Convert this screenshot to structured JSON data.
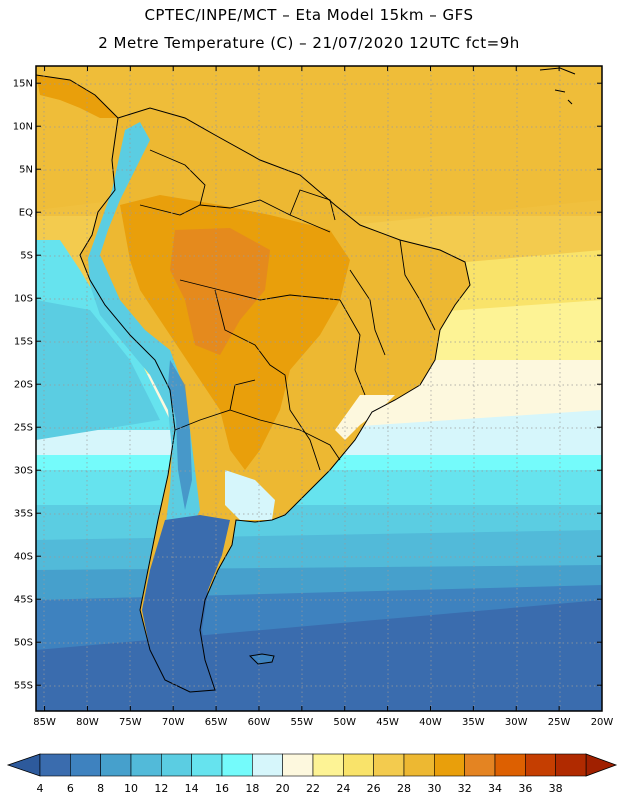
{
  "title": {
    "line1": "CPTEC/INPE/MCT –  Eta Model 15km – GFS",
    "line2": "2 Metre Temperature (C) – 21/07/2020 12UTC fct=9h"
  },
  "map": {
    "lon_range": [
      -86,
      -20
    ],
    "lat_range": [
      -58,
      17
    ],
    "lat_labels": [
      "15N",
      "10N",
      "5N",
      "EQ",
      "5S",
      "10S",
      "15S",
      "20S",
      "25S",
      "30S",
      "35S",
      "40S",
      "45S",
      "50S",
      "55S"
    ],
    "lat_values": [
      15,
      10,
      5,
      0,
      -5,
      -10,
      -15,
      -20,
      -25,
      -30,
      -35,
      -40,
      -45,
      -50,
      -55
    ],
    "lon_labels": [
      "85W",
      "80W",
      "75W",
      "70W",
      "65W",
      "60W",
      "55W",
      "50W",
      "45W",
      "40W",
      "35W",
      "30W",
      "25W",
      "20W"
    ],
    "lon_values": [
      -85,
      -80,
      -75,
      -70,
      -65,
      -60,
      -55,
      -50,
      -45,
      -40,
      -35,
      -30,
      -25,
      -20
    ]
  },
  "colorbar": {
    "labels": [
      "4",
      "6",
      "8",
      "10",
      "12",
      "14",
      "16",
      "18",
      "20",
      "22",
      "24",
      "26",
      "28",
      "30",
      "32",
      "34",
      "36",
      "38"
    ],
    "colors": [
      "#3a6cae",
      "#3e82bf",
      "#46a0cc",
      "#52bad9",
      "#5bcde2",
      "#66e3ee",
      "#74fbfb",
      "#d6f6fb",
      "#fdf8de",
      "#fdf395",
      "#f9e36a",
      "#f3cb4e",
      "#edb832",
      "#e99f0b",
      "#e48422",
      "#dd6001",
      "#c53e01",
      "#b02a00"
    ],
    "under_color": "#2d5a9c",
    "over_color": "#a02000"
  },
  "colors": {
    "ocean_trop": "#f3cb4e",
    "land_hot": "#e99f0b",
    "cold_ocean": "#3a6cae"
  }
}
